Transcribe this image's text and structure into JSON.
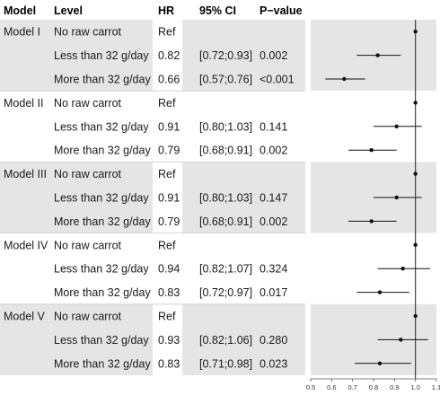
{
  "columns": {
    "model": "Model",
    "level": "Level",
    "hr": "HR",
    "ci": "95% CI",
    "p": "P−value"
  },
  "rows": [
    {
      "model": "Model I",
      "level": "No raw carrot",
      "hr": "Ref",
      "ci": "",
      "p": ""
    },
    {
      "model": "",
      "level": "Less than 32 g/day",
      "hr": "0.82",
      "ci": "[0.72;0.93]",
      "p": "0.002"
    },
    {
      "model": "",
      "level": "More than 32 g/day",
      "hr": "0.66",
      "ci": "[0.57;0.76]",
      "p": "<0.001"
    },
    {
      "model": "Model II",
      "level": "No raw carrot",
      "hr": "Ref",
      "ci": "",
      "p": ""
    },
    {
      "model": "",
      "level": "Less than 32 g/day",
      "hr": "0.91",
      "ci": "[0.80;1.03]",
      "p": "0.141"
    },
    {
      "model": "",
      "level": "More than 32 g/day",
      "hr": "0.79",
      "ci": "[0.68;0.91]",
      "p": "0.002"
    },
    {
      "model": "Model III",
      "level": "No raw carrot",
      "hr": "Ref",
      "ci": "",
      "p": ""
    },
    {
      "model": "",
      "level": "Less than 32 g/day",
      "hr": "0.91",
      "ci": "[0.80;1.03]",
      "p": "0.147"
    },
    {
      "model": "",
      "level": "More than 32 g/day",
      "hr": "0.79",
      "ci": "[0.68;0.91]",
      "p": "0.002"
    },
    {
      "model": "Model IV",
      "level": "No raw carrot",
      "hr": "Ref",
      "ci": "",
      "p": ""
    },
    {
      "model": "",
      "level": "Less than 32 g/day",
      "hr": "0.94",
      "ci": "[0.82;1.07]",
      "p": "0.324"
    },
    {
      "model": "",
      "level": "More than 32 g/day",
      "hr": "0.83",
      "ci": "[0.72;0.97]",
      "p": "0.017"
    },
    {
      "model": "Model V",
      "level": "No raw carrot",
      "hr": "Ref",
      "ci": "",
      "p": ""
    },
    {
      "model": "",
      "level": "Less than 32 g/day",
      "hr": "0.93",
      "ci": "[0.82;1.06]",
      "p": "0.280"
    },
    {
      "model": "",
      "level": "More than 32 g/day",
      "hr": "0.83",
      "ci": "[0.71;0.98]",
      "p": "0.023"
    }
  ],
  "chart_data": {
    "type": "scatter",
    "subtype": "forest",
    "title": "",
    "xlabel": "",
    "ylabel": "",
    "xlim": [
      0.5,
      1.1
    ],
    "xticks": [
      "0.5",
      "0.6",
      "0.7",
      "0.8",
      "0.9",
      "1.0",
      "1.1"
    ],
    "reference_line": 1.0,
    "grid": false,
    "points": [
      {
        "hr": 1.0,
        "lo": null,
        "hi": null
      },
      {
        "hr": 0.82,
        "lo": 0.72,
        "hi": 0.93
      },
      {
        "hr": 0.66,
        "lo": 0.57,
        "hi": 0.76
      },
      {
        "hr": 1.0,
        "lo": null,
        "hi": null
      },
      {
        "hr": 0.91,
        "lo": 0.8,
        "hi": 1.03
      },
      {
        "hr": 0.79,
        "lo": 0.68,
        "hi": 0.91
      },
      {
        "hr": 1.0,
        "lo": null,
        "hi": null
      },
      {
        "hr": 0.91,
        "lo": 0.8,
        "hi": 1.03
      },
      {
        "hr": 0.79,
        "lo": 0.68,
        "hi": 0.91
      },
      {
        "hr": 1.0,
        "lo": null,
        "hi": null
      },
      {
        "hr": 0.94,
        "lo": 0.82,
        "hi": 1.07
      },
      {
        "hr": 0.83,
        "lo": 0.72,
        "hi": 0.97
      },
      {
        "hr": 1.0,
        "lo": null,
        "hi": null
      },
      {
        "hr": 0.93,
        "lo": 0.82,
        "hi": 1.06
      },
      {
        "hr": 0.83,
        "lo": 0.71,
        "hi": 0.98
      }
    ],
    "colors": {
      "band": "#e5e5e5",
      "point": "#111111",
      "ci_line": "#111111",
      "reference_line": "#333333",
      "text": "#1a1a1a",
      "divider": "#cccccc"
    }
  }
}
